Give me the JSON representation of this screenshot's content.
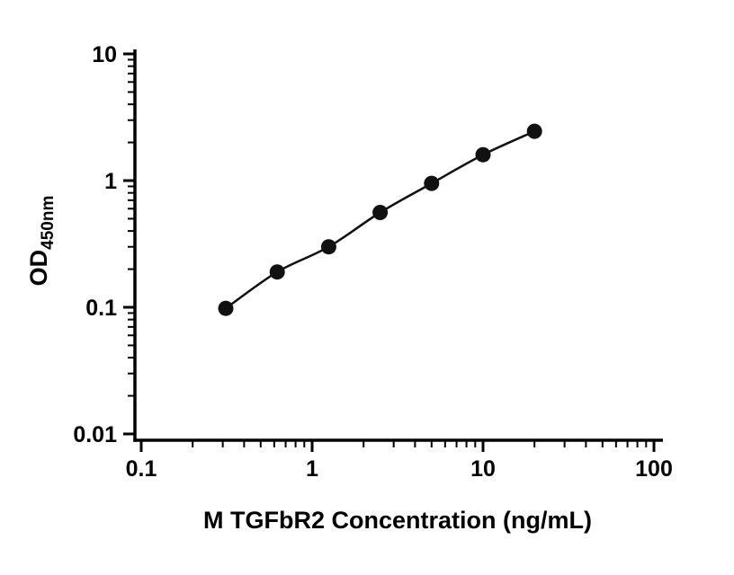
{
  "chart_data": {
    "type": "line",
    "x": [
      0.3125,
      0.625,
      1.25,
      2.5,
      5,
      10,
      20
    ],
    "y": [
      0.098,
      0.19,
      0.3,
      0.56,
      0.95,
      1.6,
      2.45
    ],
    "title": "",
    "xlabel": "M TGFbR2 Concentration (ng/mL)",
    "ylabel_main": "OD",
    "ylabel_sub": "450nm",
    "xscale": "log",
    "yscale": "log",
    "xlim": [
      0.1,
      100
    ],
    "ylim": [
      0.01,
      10
    ],
    "x_ticks": [
      "0.1",
      "1",
      "10",
      "100"
    ],
    "y_ticks": [
      "0.01",
      "0.1",
      "1",
      "10"
    ],
    "grid": "off",
    "legend": "none",
    "line_color": "#111111",
    "marker_color": "#111111",
    "marker_shape": "circle"
  }
}
